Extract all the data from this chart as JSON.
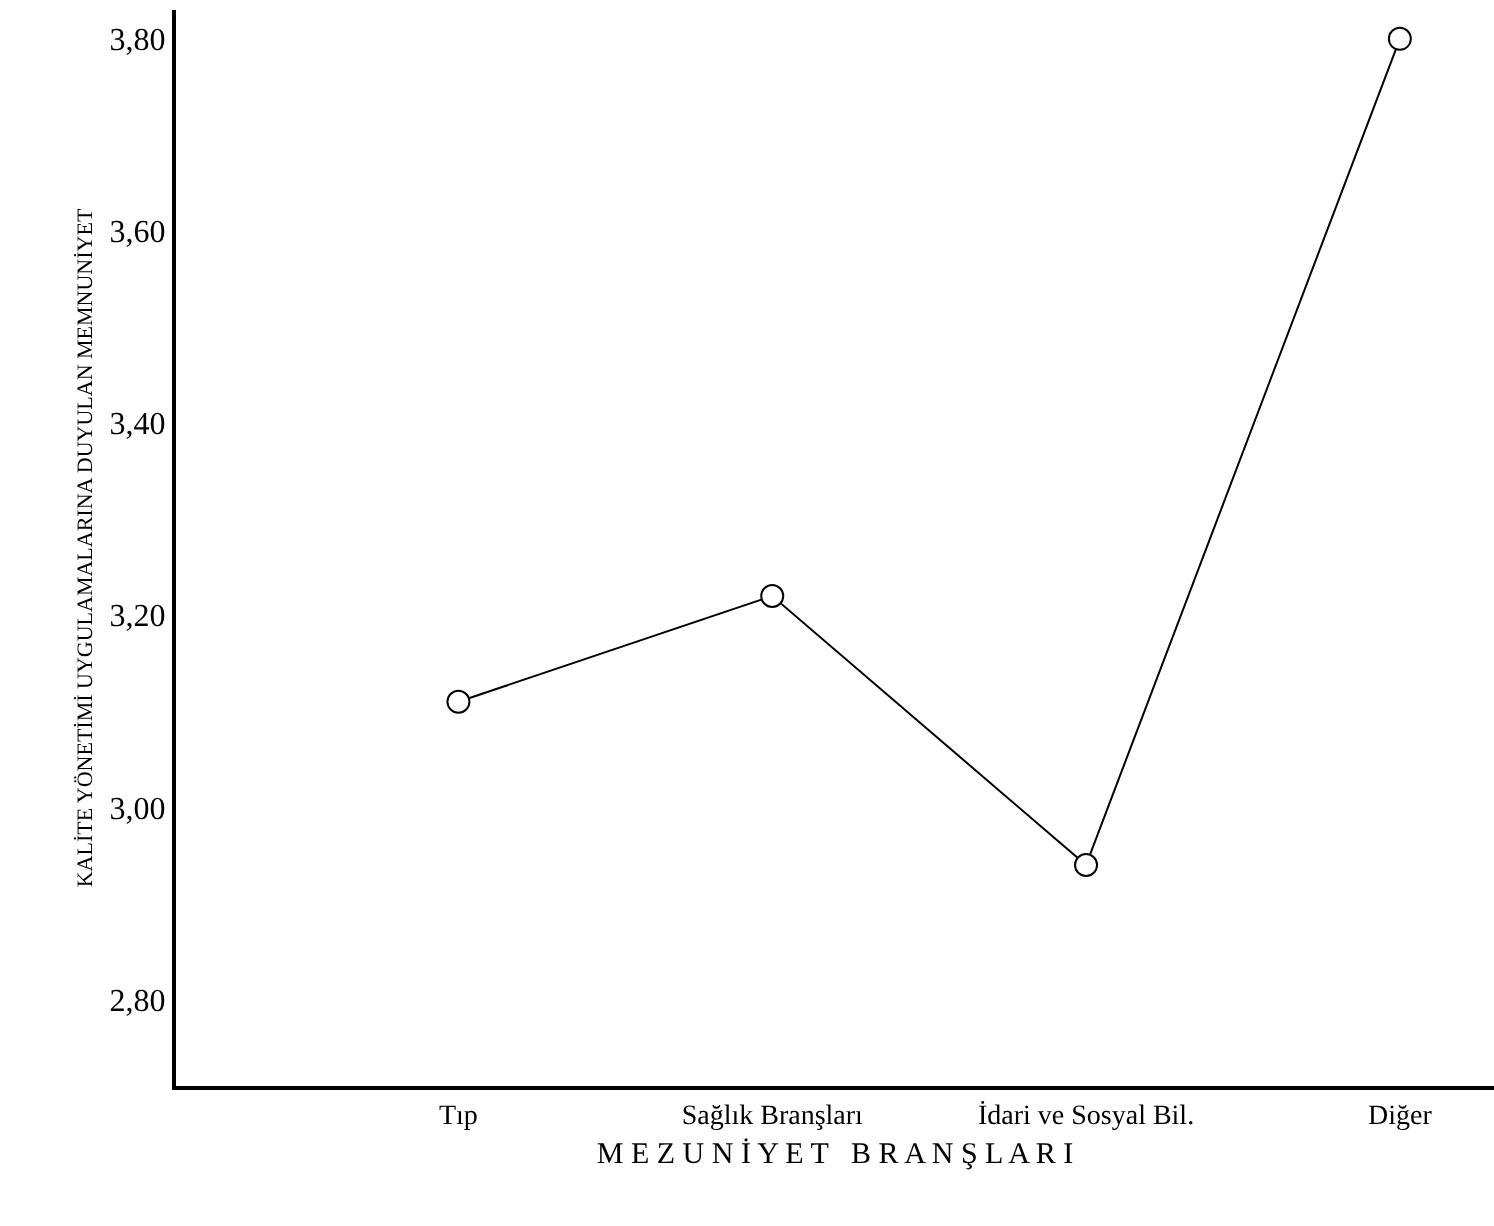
{
  "chart_data": {
    "type": "line",
    "categories": [
      "Tıp",
      "Sağlık Branşları",
      "İdari ve Sosyal Bil.",
      "Diğer"
    ],
    "series": [
      {
        "color": "#000000",
        "values": [
          3.11,
          3.22,
          2.94,
          3.8
        ]
      }
    ],
    "xlabel": "M E Z U N İ Y E T   B R A N Ş L A R I",
    "ylabel": "KALİTE YÖNETİMİ UYGULAMALARINA DUYULAN MEMNUNİYET",
    "ylim": [
      2.71,
      3.83
    ],
    "yticks": [
      {
        "value": 2.8,
        "label": "2,80"
      },
      {
        "value": 3.0,
        "label": "3,00"
      },
      {
        "value": 3.2,
        "label": "3,20"
      },
      {
        "value": 3.4,
        "label": "3,40"
      },
      {
        "value": 3.6,
        "label": "3,60"
      },
      {
        "value": 3.8,
        "label": "3,80"
      }
    ],
    "marker": "circle",
    "line_style": "solid"
  }
}
